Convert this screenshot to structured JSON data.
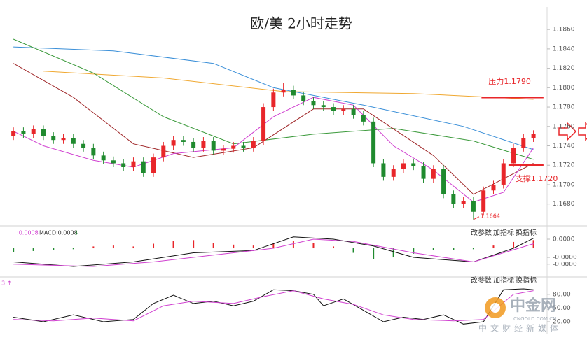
{
  "chart_data": [
    {
      "type": "candlestick",
      "title": "欧/美 2小时走势",
      "xlim": [
        -0.5,
        53.5
      ],
      "open": [
        1.175,
        1.1755,
        1.1752,
        1.1757,
        1.175,
        1.1746,
        1.1748,
        1.1742,
        1.1738,
        1.173,
        1.1725,
        1.1722,
        1.1718,
        1.1724,
        1.1712,
        1.1728,
        1.174,
        1.1746,
        1.1744,
        1.1738,
        1.1745,
        1.1735,
        1.1737,
        1.174,
        1.1738,
        1.1745,
        1.178,
        1.1795,
        1.1798,
        1.1792,
        1.1786,
        1.1782,
        1.178,
        1.1776,
        1.1778,
        1.1772,
        1.1765,
        1.1722,
        1.1708,
        1.1716,
        1.1722,
        1.1719,
        1.1706,
        1.1716,
        1.169,
        1.168,
        1.1683,
        1.1672,
        1.1694,
        1.17,
        1.1722,
        1.1738,
        1.1748
      ],
      "high": [
        1.1759,
        1.1759,
        1.1761,
        1.1761,
        1.1754,
        1.1752,
        1.1752,
        1.1746,
        1.1742,
        1.1734,
        1.1729,
        1.1726,
        1.1728,
        1.1728,
        1.1732,
        1.1744,
        1.175,
        1.175,
        1.1748,
        1.1749,
        1.1749,
        1.1741,
        1.1744,
        1.1744,
        1.1749,
        1.1784,
        1.1799,
        1.1805,
        1.1802,
        1.1796,
        1.179,
        1.1786,
        1.1784,
        1.1782,
        1.1782,
        1.1776,
        1.1769,
        1.1726,
        1.172,
        1.1726,
        1.1726,
        1.1723,
        1.172,
        1.172,
        1.1694,
        1.1687,
        1.1687,
        1.1698,
        1.1704,
        1.1726,
        1.1742,
        1.1752,
        1.1756
      ],
      "low": [
        1.1746,
        1.1748,
        1.1748,
        1.1746,
        1.1742,
        1.1742,
        1.1738,
        1.1734,
        1.1726,
        1.1721,
        1.1718,
        1.1714,
        1.1714,
        1.1708,
        1.1708,
        1.1724,
        1.1736,
        1.174,
        1.1734,
        1.1734,
        1.1731,
        1.1731,
        1.1733,
        1.1734,
        1.1734,
        1.1741,
        1.1776,
        1.1791,
        1.1788,
        1.1782,
        1.1778,
        1.1776,
        1.1772,
        1.1772,
        1.1768,
        1.1761,
        1.1718,
        1.1704,
        1.1704,
        1.1712,
        1.1715,
        1.1702,
        1.1702,
        1.1686,
        1.1676,
        1.1676,
        1.1664,
        1.1668,
        1.169,
        1.1696,
        1.1718,
        1.1734,
        1.1744
      ],
      "close": [
        1.1755,
        1.1752,
        1.1757,
        1.175,
        1.1746,
        1.1748,
        1.1742,
        1.1738,
        1.173,
        1.1725,
        1.1722,
        1.1718,
        1.1724,
        1.1712,
        1.1728,
        1.174,
        1.1746,
        1.1744,
        1.1738,
        1.1745,
        1.1735,
        1.1737,
        1.174,
        1.1738,
        1.1745,
        1.178,
        1.1795,
        1.1798,
        1.1792,
        1.1786,
        1.1782,
        1.178,
        1.1776,
        1.1778,
        1.1772,
        1.1765,
        1.1722,
        1.1708,
        1.1716,
        1.1722,
        1.1719,
        1.1706,
        1.1716,
        1.169,
        1.168,
        1.1683,
        1.1672,
        1.1694,
        1.17,
        1.1722,
        1.1738,
        1.1748,
        1.1752
      ],
      "up_color": "#e8262a",
      "down_color": "#1f8a2e",
      "lines": [
        {
          "color": "#f0a830",
          "x": [
            3,
            15,
            27,
            40,
            52
          ],
          "values": [
            1.1817,
            1.181,
            1.1796,
            1.1794,
            1.1788
          ]
        },
        {
          "color": "#3a8fd8",
          "x": [
            0,
            10,
            20,
            26,
            35,
            45,
            52
          ],
          "values": [
            1.1842,
            1.1838,
            1.1825,
            1.18,
            1.1782,
            1.176,
            1.1736
          ]
        },
        {
          "color": "#3c9a3c",
          "x": [
            0,
            8,
            15,
            22,
            30,
            38,
            46,
            52
          ],
          "values": [
            1.185,
            1.1815,
            1.177,
            1.1742,
            1.1752,
            1.1758,
            1.1745,
            1.1726
          ]
        },
        {
          "color": "#a0282a",
          "x": [
            0,
            6,
            12,
            18,
            24,
            30,
            35,
            42,
            46,
            52
          ],
          "values": [
            1.1825,
            1.179,
            1.1742,
            1.1728,
            1.1738,
            1.1778,
            1.1778,
            1.173,
            1.169,
            1.1722
          ]
        },
        {
          "color": "#d040d0",
          "x": [
            0,
            3,
            8,
            12,
            16,
            22,
            26,
            30,
            34,
            38,
            42,
            46,
            49,
            52
          ],
          "values": [
            1.1755,
            1.174,
            1.1725,
            1.1718,
            1.1732,
            1.1738,
            1.177,
            1.179,
            1.1782,
            1.174,
            1.1715,
            1.1682,
            1.1692,
            1.1738
          ]
        }
      ],
      "levels": [
        {
          "label": "压力1.1790",
          "value": 1.179,
          "color": "#e8262a",
          "x": [
            46.8,
            53.0
          ]
        },
        {
          "label": "支撑1.1720",
          "value": 1.172,
          "color": "#e8262a",
          "x": [
            49.5,
            53.0
          ]
        }
      ],
      "low_label": {
        "x": 46,
        "value": 1.1664
      },
      "ylim": [
        1.1661,
        1.1876
      ],
      "yticks": [
        {
          "value": 1.168,
          "label": "1.1680"
        },
        {
          "value": 1.17,
          "label": "1.1700"
        },
        {
          "value": 1.172,
          "label": "1.1720"
        },
        {
          "value": 1.174,
          "label": "1.1740"
        },
        {
          "value": 1.176,
          "label": "1.1760"
        },
        {
          "value": 1.178,
          "label": "1.1780"
        },
        {
          "value": 1.18,
          "label": "1.1800"
        },
        {
          "value": 1.182,
          "label": "1.1820"
        },
        {
          "value": 1.184,
          "label": "1.1840"
        },
        {
          "value": 1.186,
          "label": "1.1860"
        }
      ]
    },
    {
      "type": "macd",
      "header": [
        ":0.0008",
        "MACD:0.0008"
      ],
      "buttons": [
        "改参数",
        "加指标",
        "换指标"
      ],
      "xlim": [
        -0.5,
        53.5
      ],
      "histogram_x": [
        0,
        2,
        4,
        6,
        8,
        10,
        12,
        14,
        16,
        18,
        20,
        22,
        24,
        26,
        28,
        30,
        32,
        34,
        36,
        38,
        40,
        42,
        44,
        46,
        48,
        50,
        52
      ],
      "histogram": [
        -8e-06,
        -6e-06,
        -4e-06,
        -2e-06,
        4e-06,
        6e-06,
        4e-06,
        1e-05,
        1.6e-05,
        1.8e-05,
        1.2e-05,
        8e-06,
        6e-06,
        1.2e-05,
        1.6e-05,
        1.2e-05,
        4e-06,
        -1e-05,
        -2.4e-05,
        -2e-05,
        -1.2e-05,
        -4e-06,
        -4e-06,
        -2e-06,
        6e-06,
        1.4e-05,
        1.8e-05
      ],
      "up_color": "#e8262a",
      "down_color": "#1f8a2e",
      "lines": [
        {
          "color": "#111111",
          "x": [
            0,
            6,
            12,
            18,
            24,
            28,
            32,
            36,
            40,
            46,
            50,
            52
          ],
          "values": [
            -3e-05,
            -4e-05,
            -3e-05,
            -1e-05,
            -5e-06,
            2.5e-05,
            2e-05,
            5e-06,
            -2e-05,
            -3e-05,
            0.0,
            2.2e-05
          ]
        },
        {
          "color": "#d040d0",
          "x": [
            0,
            8,
            14,
            20,
            26,
            30,
            34,
            40,
            46,
            52
          ],
          "values": [
            -3.5e-05,
            -4e-05,
            -3e-05,
            -1.5e-05,
            0.0,
            2e-05,
            1.5e-05,
            -1e-05,
            -3e-05,
            1e-05
          ]
        }
      ],
      "ylim": [
        -6.15e-05,
        3.85e-05
      ],
      "yticks": [
        {
          "value": 2e-05,
          "label": "0.0000"
        },
        {
          "value": -2e-05,
          "label": "-0.0000"
        },
        {
          "value": -3.5e-05,
          "label": "-0.0000"
        }
      ]
    },
    {
      "type": "kdj",
      "header": [
        "3"
      ],
      "buttons": [
        "改参数",
        "加指标",
        "换指标"
      ],
      "xlim": [
        -0.5,
        53.5
      ],
      "lines": [
        {
          "color": "#111111",
          "x": [
            0,
            3,
            6,
            9,
            12,
            14,
            16,
            18,
            20,
            22,
            24,
            26,
            28,
            30,
            31,
            33,
            35,
            37,
            39,
            41,
            43,
            45,
            47,
            49,
            51,
            52
          ],
          "values": [
            30,
            20,
            35,
            20,
            25,
            60,
            78,
            60,
            65,
            55,
            65,
            90,
            88,
            80,
            55,
            70,
            45,
            20,
            30,
            25,
            35,
            15,
            20,
            90,
            92,
            90
          ]
        },
        {
          "color": "#d040d0",
          "x": [
            0,
            4,
            8,
            12,
            15,
            18,
            22,
            25,
            28,
            31,
            34,
            37,
            40,
            44,
            47,
            50,
            52
          ],
          "values": [
            25,
            22,
            28,
            22,
            55,
            65,
            60,
            75,
            88,
            70,
            58,
            35,
            25,
            22,
            25,
            80,
            88
          ]
        }
      ],
      "ylim": [
        -3,
        115
      ],
      "yticks": [
        {
          "value": 80,
          "label": "80.00"
        },
        {
          "value": 50,
          "label": "50.00"
        },
        {
          "value": 20,
          "label": "20.00"
        }
      ]
    }
  ],
  "watermark": {
    "brand": "中金网",
    "domain": "CNGOLD.COM.CN",
    "slogan": "中文财经新媒体"
  }
}
